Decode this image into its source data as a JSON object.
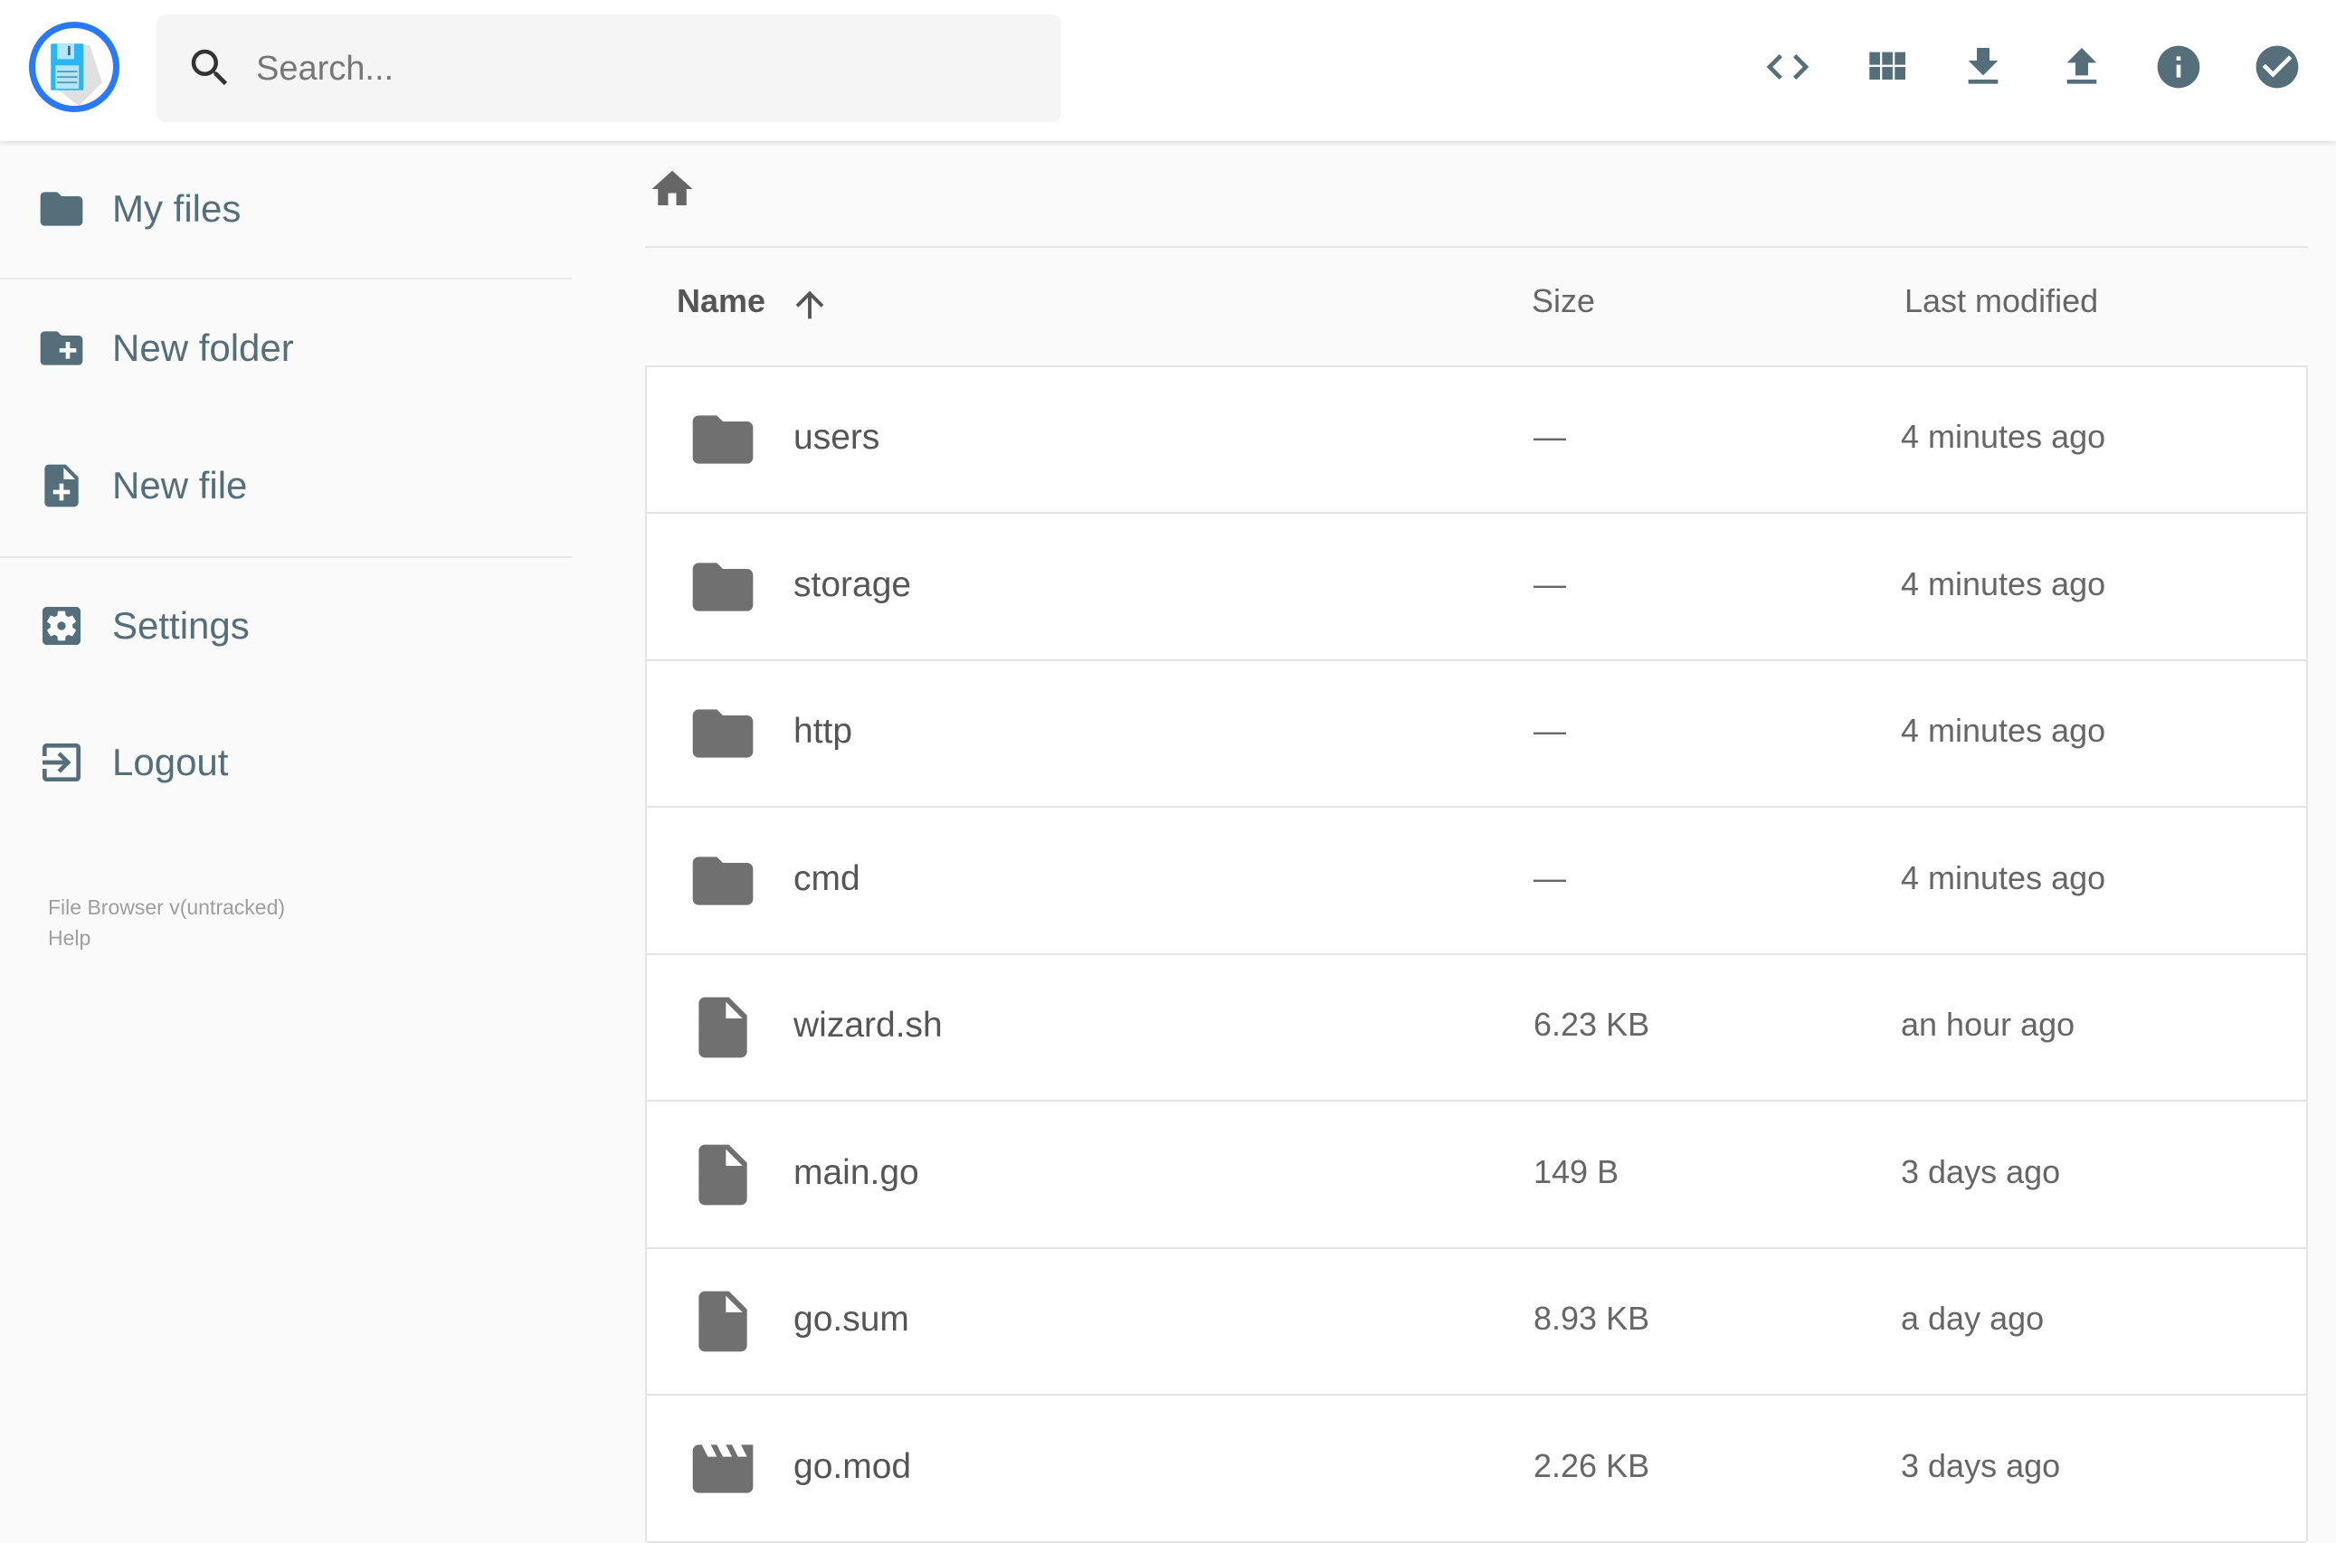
{
  "header": {
    "logo_alt": "File Browser",
    "search_placeholder": "Search...",
    "actions": [
      {
        "name": "toggle-code-icon",
        "icon": "code"
      },
      {
        "name": "view-mode-icon",
        "icon": "view_module"
      },
      {
        "name": "download-icon",
        "icon": "file_download"
      },
      {
        "name": "upload-icon",
        "icon": "file_upload"
      },
      {
        "name": "info-icon",
        "icon": "info"
      },
      {
        "name": "select-icon",
        "icon": "check_circle"
      }
    ]
  },
  "sidebar": {
    "items": [
      {
        "label": "My files",
        "icon": "folder"
      },
      {
        "label": "New folder",
        "icon": "create_new_folder"
      },
      {
        "label": "New file",
        "icon": "note_add"
      },
      {
        "label": "Settings",
        "icon": "settings_applications"
      },
      {
        "label": "Logout",
        "icon": "exit_to_app"
      }
    ],
    "footer": {
      "version": "File Browser v(untracked)",
      "help": "Help"
    }
  },
  "breadcrumb": {
    "icon": "home"
  },
  "table": {
    "columns": {
      "name": "Name",
      "size": "Size",
      "modified": "Last modified"
    },
    "sort": "name-ascending",
    "rows": [
      {
        "name": "users",
        "size": "—",
        "modified": "4 minutes ago",
        "icon": "folder"
      },
      {
        "name": "storage",
        "size": "—",
        "modified": "4 minutes ago",
        "icon": "folder"
      },
      {
        "name": "http",
        "size": "—",
        "modified": "4 minutes ago",
        "icon": "folder"
      },
      {
        "name": "cmd",
        "size": "—",
        "modified": "4 minutes ago",
        "icon": "folder"
      },
      {
        "name": "wizard.sh",
        "size": "6.23 KB",
        "modified": "an hour ago",
        "icon": "insert_drive_file"
      },
      {
        "name": "main.go",
        "size": "149 B",
        "modified": "3 days ago",
        "icon": "insert_drive_file"
      },
      {
        "name": "go.sum",
        "size": "8.93 KB",
        "modified": "a day ago",
        "icon": "insert_drive_file"
      },
      {
        "name": "go.mod",
        "size": "2.26 KB",
        "modified": "3 days ago",
        "icon": "movie"
      }
    ]
  },
  "colors": {
    "accent": "#2979ff",
    "icon": "#546e7a",
    "file_icon": "#707070",
    "background": "#fafafa"
  }
}
